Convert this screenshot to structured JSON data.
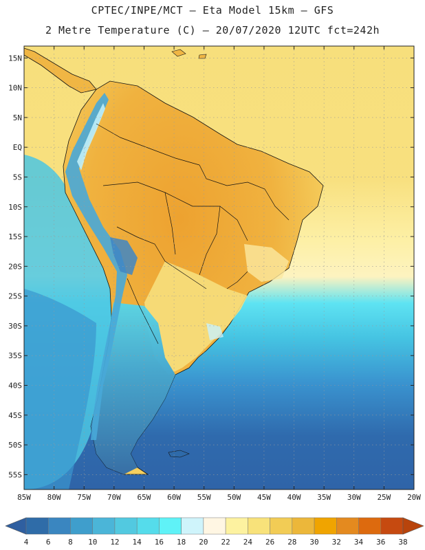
{
  "header": {
    "line1": "CPTEC/INPE/MCT –  Eta Model 15km – GFS",
    "line2": "2 Metre Temperature (C) – 20/07/2020 12UTC fct=242h"
  },
  "map": {
    "lat_labels": [
      "15N",
      "10N",
      "5N",
      "EQ",
      "5S",
      "10S",
      "15S",
      "20S",
      "25S",
      "30S",
      "35S",
      "40S",
      "45S",
      "50S",
      "55S"
    ],
    "lon_labels": [
      "85W",
      "80W",
      "75W",
      "70W",
      "65W",
      "60W",
      "55W",
      "50W",
      "45W",
      "40W",
      "35W",
      "30W",
      "25W",
      "20W"
    ],
    "extent": {
      "lon_min": -85,
      "lon_max": -20,
      "lat_min": -57.5,
      "lat_max": 17
    }
  },
  "colorbar": {
    "labels": [
      "4",
      "6",
      "8",
      "10",
      "12",
      "14",
      "16",
      "18",
      "20",
      "22",
      "24",
      "26",
      "28",
      "30",
      "32",
      "34",
      "36",
      "38"
    ],
    "colors": [
      "#2f6ca8",
      "#3a86c0",
      "#3f9ecc",
      "#4bb5d8",
      "#52c9e0",
      "#55dceb",
      "#5ff2f7",
      "#cff4fb",
      "#fff6e3",
      "#fdf2a0",
      "#f8e27a",
      "#f2cc55",
      "#ecb73a",
      "#f0a400",
      "#e48a1f",
      "#dd6a0e",
      "#c64a10"
    ],
    "low_arrow_color": "#2f5fa0",
    "high_arrow_color": "#b8440c"
  },
  "palette": {
    "ocean_warm": "#f7df7c",
    "ocean_mid": "#fdf0a6",
    "ocean_cool": "#3fd6ea",
    "ocean_cold": "#3a8fcc",
    "ocean_coldest": "#2f66ab",
    "land_hot": "#eda935",
    "land_warm": "#f2c24e",
    "land_mild": "#f8e27a",
    "andes": "#3f9ecc",
    "andes_high": "#a8e6f5",
    "patagonia": "#2e6aa9"
  }
}
